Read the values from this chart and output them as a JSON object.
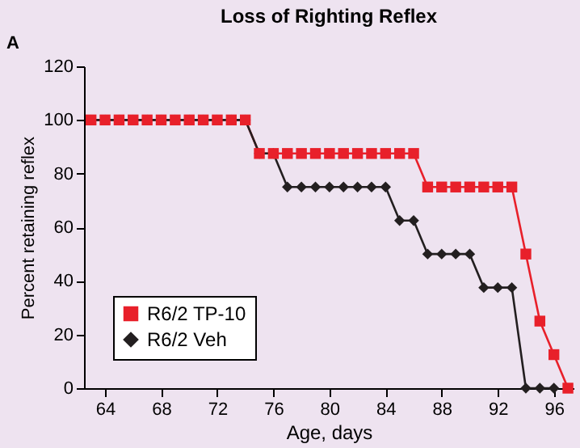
{
  "chart_data": {
    "type": "line",
    "title": "Loss of Righting Reflex",
    "xlabel": "Age, days",
    "ylabel": "Percent retaining reflex",
    "annotations": [
      "A"
    ],
    "x": [
      63,
      64,
      65,
      66,
      67,
      68,
      69,
      70,
      71,
      72,
      73,
      74,
      75,
      76,
      77,
      78,
      79,
      80,
      81,
      82,
      83,
      84,
      85,
      86,
      87,
      88,
      89,
      90,
      91,
      92,
      93,
      94,
      95,
      96,
      97
    ],
    "series": [
      {
        "name": "R6/2 TP-10",
        "color": "#e8202a",
        "marker": "square",
        "values": [
          100,
          100,
          100,
          100,
          100,
          100,
          100,
          100,
          100,
          100,
          100,
          100,
          87.5,
          87.5,
          87.5,
          87.5,
          87.5,
          87.5,
          87.5,
          87.5,
          87.5,
          87.5,
          87.5,
          87.5,
          75,
          75,
          75,
          75,
          75,
          75,
          75,
          50,
          25,
          12.5,
          0
        ]
      },
      {
        "name": "R6/2 Veh",
        "color": "#231f20",
        "marker": "diamond",
        "values": [
          100,
          100,
          100,
          100,
          100,
          100,
          100,
          100,
          100,
          100,
          100,
          100,
          87.5,
          87.5,
          75,
          75,
          75,
          75,
          75,
          75,
          75,
          75,
          62.5,
          62.5,
          50,
          50,
          50,
          50,
          37.5,
          37.5,
          37.5,
          0,
          0,
          0,
          null
        ]
      }
    ],
    "xlim": [
      62.5,
      97.4
    ],
    "xticks": [
      64,
      68,
      72,
      76,
      80,
      84,
      88,
      92,
      96
    ],
    "ylim": [
      0,
      120
    ],
    "yticks": [
      0,
      20,
      40,
      60,
      80,
      100,
      120
    ],
    "grid": false,
    "legend": "bottom left",
    "line_style": "solid"
  }
}
